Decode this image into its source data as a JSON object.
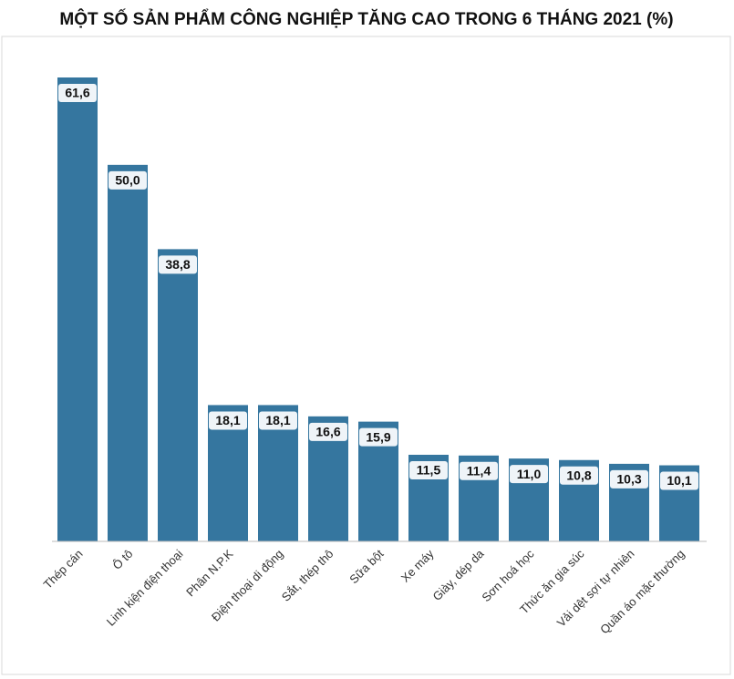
{
  "chart_data": {
    "type": "bar",
    "title": "MỘT SỐ SẢN PHẨM CÔNG NGHIỆP TĂNG CAO TRONG 6 THÁNG 2021 (%)",
    "categories": [
      "Thép cán",
      "Ô tô",
      "Linh kiện điện thoại",
      "Phân N.P.K",
      "Điện thoại di động",
      "Sắt, thép thô",
      "Sữa bột",
      "Xe máy",
      "Giày, dép da",
      "Sơn hoá học",
      "Thức ăn gia súc",
      "Vải dệt sợi tự nhiên",
      "Quần áo mặc thường"
    ],
    "values": [
      61.6,
      50.0,
      38.8,
      18.1,
      18.1,
      16.6,
      15.9,
      11.5,
      11.4,
      11.0,
      10.8,
      10.3,
      10.1
    ],
    "value_labels": [
      "61,6",
      "50,0",
      "38,8",
      "18,1",
      "18,1",
      "16,6",
      "15,9",
      "11,5",
      "11,4",
      "11,0",
      "10,8",
      "10,3",
      "10,1"
    ],
    "color": "#35769f"
  }
}
